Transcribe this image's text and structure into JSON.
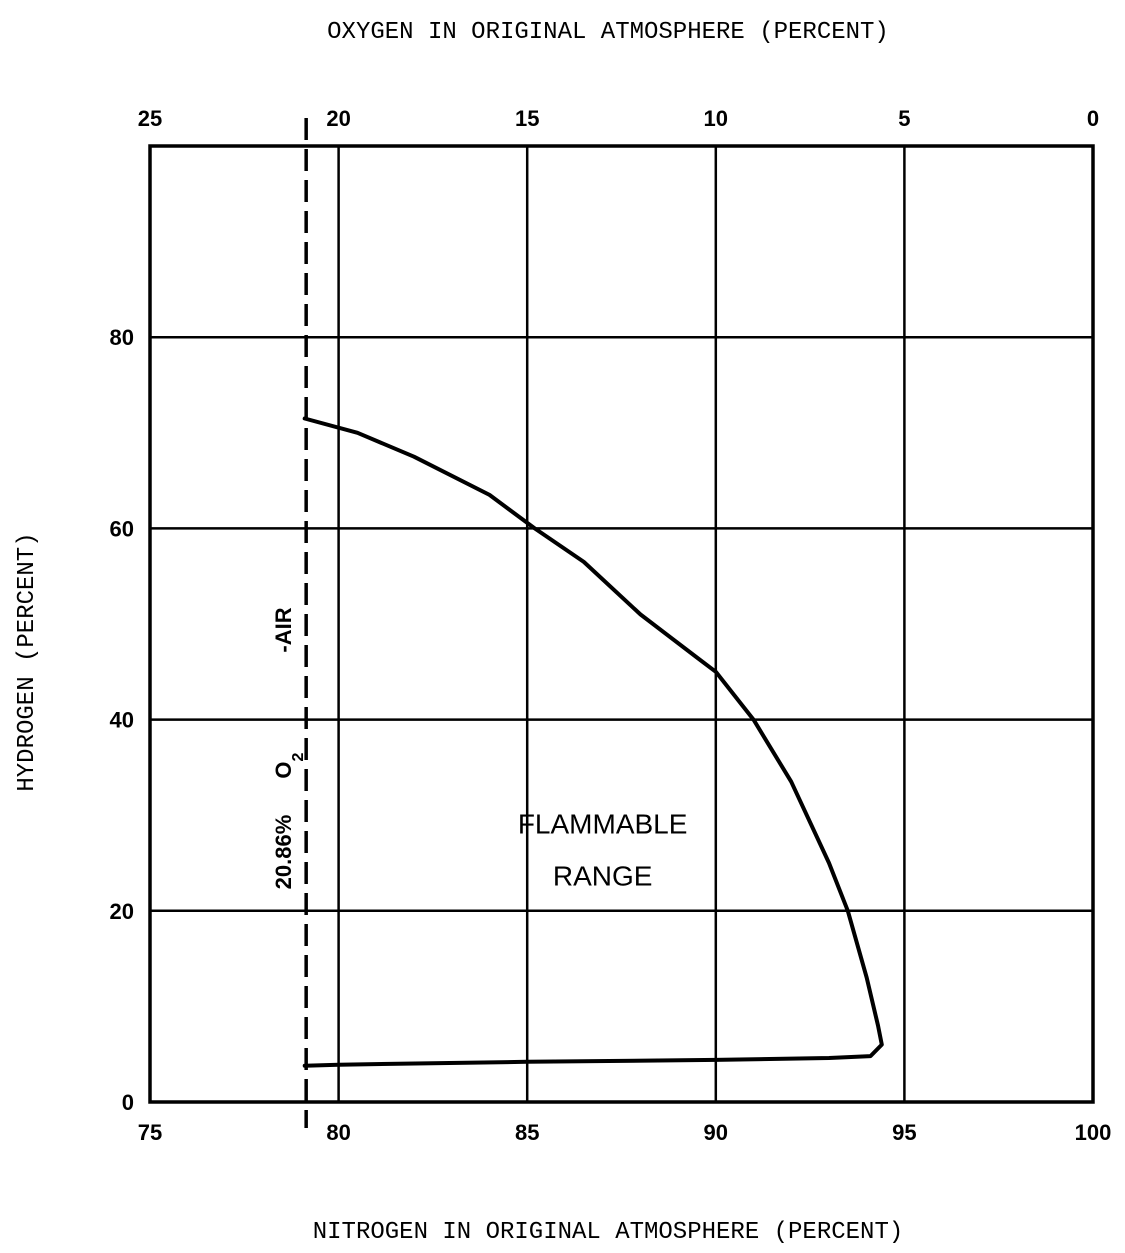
{
  "chart_data": {
    "type": "line",
    "top_axis_label": "OXYGEN IN ORIGINAL ATMOSPHERE (PERCENT)",
    "xlabel": "NITROGEN IN ORIGINAL ATMOSPHERE (PERCENT)",
    "ylabel": "HYDROGEN (PERCENT)",
    "xlim": [
      75,
      100
    ],
    "ylim": [
      0,
      100
    ],
    "top_xlim": [
      25,
      0
    ],
    "x_ticks": [
      "75",
      "80",
      "85",
      "90",
      "95",
      "100"
    ],
    "x_tick_values": [
      75,
      80,
      85,
      90,
      95,
      100
    ],
    "top_ticks": [
      "25",
      "20",
      "15",
      "10",
      "5",
      "0"
    ],
    "top_tick_values": [
      25,
      20,
      15,
      10,
      5,
      0
    ],
    "y_ticks": [
      "0",
      "20",
      "40",
      "60",
      "80"
    ],
    "y_tick_values": [
      0,
      20,
      40,
      60,
      80
    ],
    "grid": true,
    "air_line": {
      "nitrogen": 79.14,
      "label_parts": [
        "20.86%",
        "O",
        "2",
        "-AIR"
      ]
    },
    "region_label": [
      "FLAMMABLE",
      "RANGE"
    ],
    "region_label_position": {
      "nitrogen": 87.0,
      "hydrogen": 26.0
    },
    "boundary": {
      "upper": [
        {
          "x": 79.1,
          "y": 71.5
        },
        {
          "x": 80.5,
          "y": 70.0
        },
        {
          "x": 82.0,
          "y": 67.5
        },
        {
          "x": 84.0,
          "y": 63.5
        },
        {
          "x": 85.2,
          "y": 60.0
        },
        {
          "x": 86.5,
          "y": 56.5
        },
        {
          "x": 88.0,
          "y": 51.0
        },
        {
          "x": 89.5,
          "y": 46.5
        },
        {
          "x": 90.0,
          "y": 45.0
        },
        {
          "x": 91.0,
          "y": 40.0
        },
        {
          "x": 92.0,
          "y": 33.5
        },
        {
          "x": 93.0,
          "y": 25.0
        },
        {
          "x": 93.5,
          "y": 20.0
        },
        {
          "x": 94.0,
          "y": 13.0
        },
        {
          "x": 94.3,
          "y": 8.0
        },
        {
          "x": 94.4,
          "y": 6.0
        }
      ],
      "lower": [
        {
          "x": 94.4,
          "y": 6.0
        },
        {
          "x": 94.1,
          "y": 4.8
        },
        {
          "x": 93.0,
          "y": 4.6
        },
        {
          "x": 90.0,
          "y": 4.4
        },
        {
          "x": 85.0,
          "y": 4.2
        },
        {
          "x": 80.0,
          "y": 3.9
        },
        {
          "x": 79.1,
          "y": 3.8
        }
      ]
    }
  }
}
